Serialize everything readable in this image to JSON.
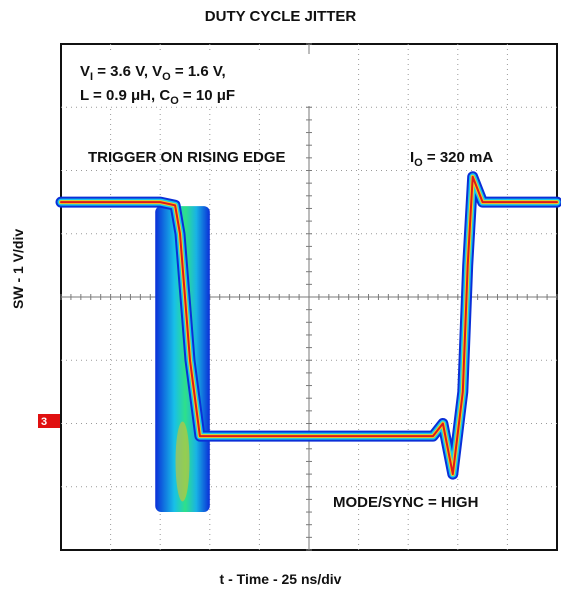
{
  "chart_data": {
    "type": "line",
    "title": "DUTY CYCLE JITTER",
    "xlabel": "t - Time - 25 ns/div",
    "ylabel": "SW - 1 V/div",
    "grid": true,
    "divisions": {
      "x": 10,
      "y": 8
    },
    "channel_marker": "3",
    "conditions_line1": "V_I = 3.6 V, V_O = 1.6 V,",
    "conditions_line2": "L = 0.9 μH, C_O = 10 μF",
    "trigger_note": "TRIGGER ON RISING EDGE",
    "load_note": "I_O = 320 mA",
    "mode_note": "MODE/SYNC = HIGH",
    "series": [
      {
        "x": [
          0,
          2.0,
          2.3,
          2.4,
          2.6,
          2.8,
          3.0,
          7.5,
          7.7,
          7.9,
          8.1,
          8.2,
          8.3,
          8.5,
          10
        ],
        "y": [
          1.5,
          1.5,
          1.45,
          1.0,
          -1.0,
          -2.2,
          -2.2,
          -2.2,
          -2.0,
          -2.8,
          -1.5,
          0.5,
          1.9,
          1.5,
          1.5
        ]
      }
    ],
    "jitter_band_x": [
      1.9,
      3.0
    ]
  }
}
